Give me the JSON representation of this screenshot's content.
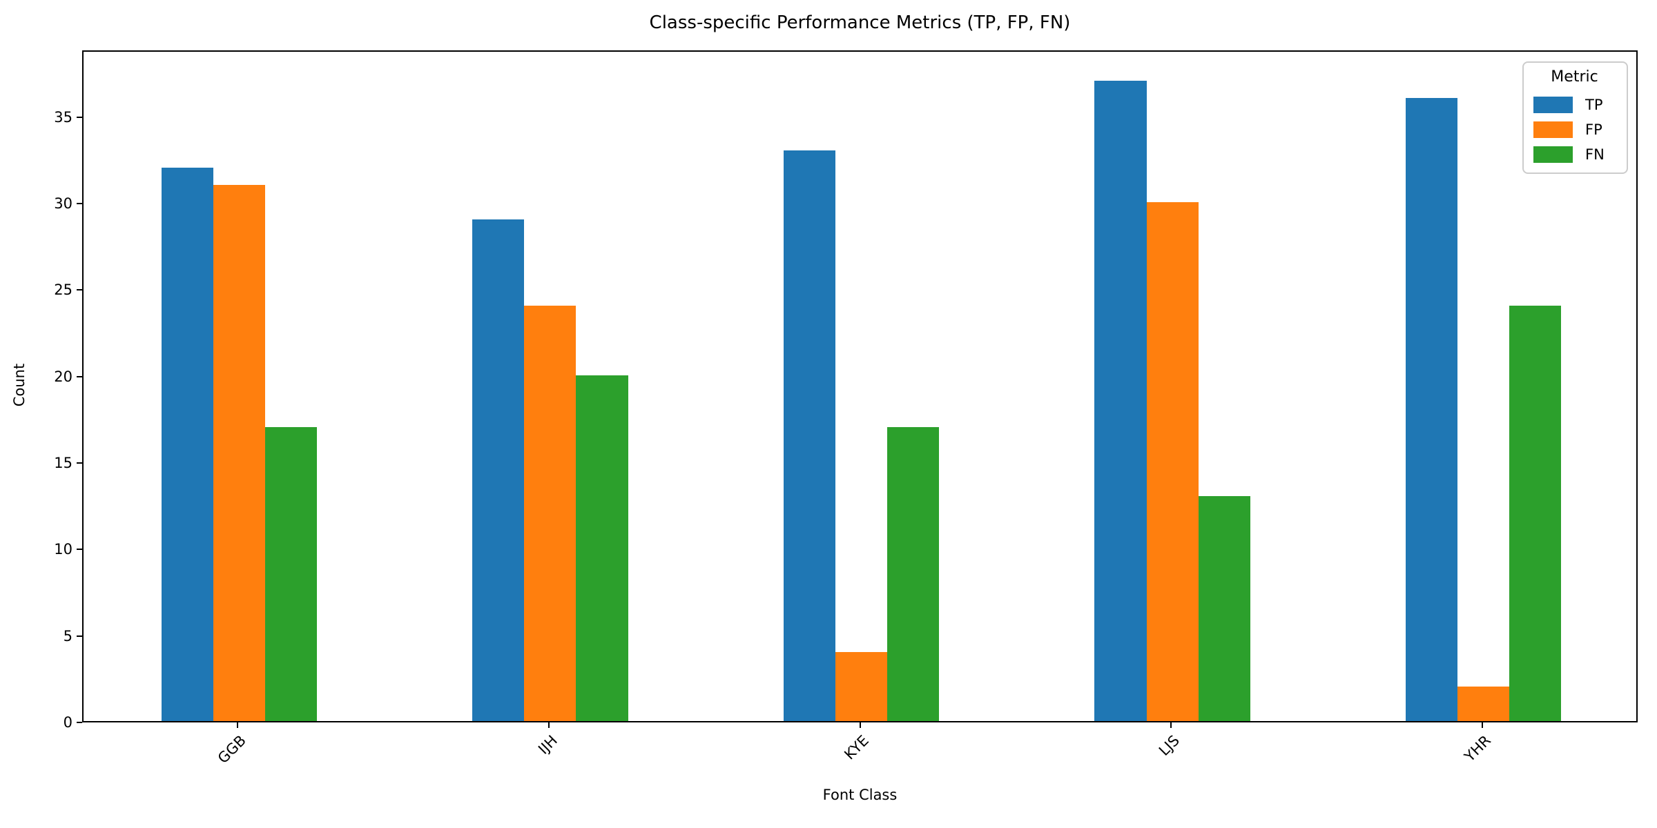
{
  "figure": {
    "title": "Class-specific Performance Metrics (TP, FP, FN)",
    "xlabel": "Font Class",
    "ylabel": "Count",
    "legend_title": "Metric",
    "background_color": "#ffffff",
    "spine_color": "#000000",
    "text_color": "#000000",
    "legend_border_color": "#cccccc"
  },
  "chart_data": {
    "type": "bar",
    "title": "Class-specific Performance Metrics (TP, FP, FN)",
    "xlabel": "Font Class",
    "ylabel": "Count",
    "categories": [
      "GGB",
      "IJH",
      "KYE",
      "LJS",
      "YHR"
    ],
    "series": [
      {
        "name": "TP",
        "color": "#1f77b4",
        "values": [
          32,
          29,
          33,
          37,
          36
        ]
      },
      {
        "name": "FP",
        "color": "#ff7f0e",
        "values": [
          31,
          24,
          4,
          30,
          2
        ]
      },
      {
        "name": "FN",
        "color": "#2ca02c",
        "values": [
          17,
          20,
          17,
          13,
          24
        ]
      }
    ],
    "yticks": [
      0,
      5,
      10,
      15,
      20,
      25,
      30,
      35
    ],
    "ylim": [
      0,
      38.85
    ],
    "xtick_rotation_deg": 45,
    "grid": false,
    "bar_group_fraction": 0.5,
    "legend": {
      "title": "Metric",
      "position": "upper right",
      "entries": [
        "TP",
        "FP",
        "FN"
      ]
    }
  }
}
